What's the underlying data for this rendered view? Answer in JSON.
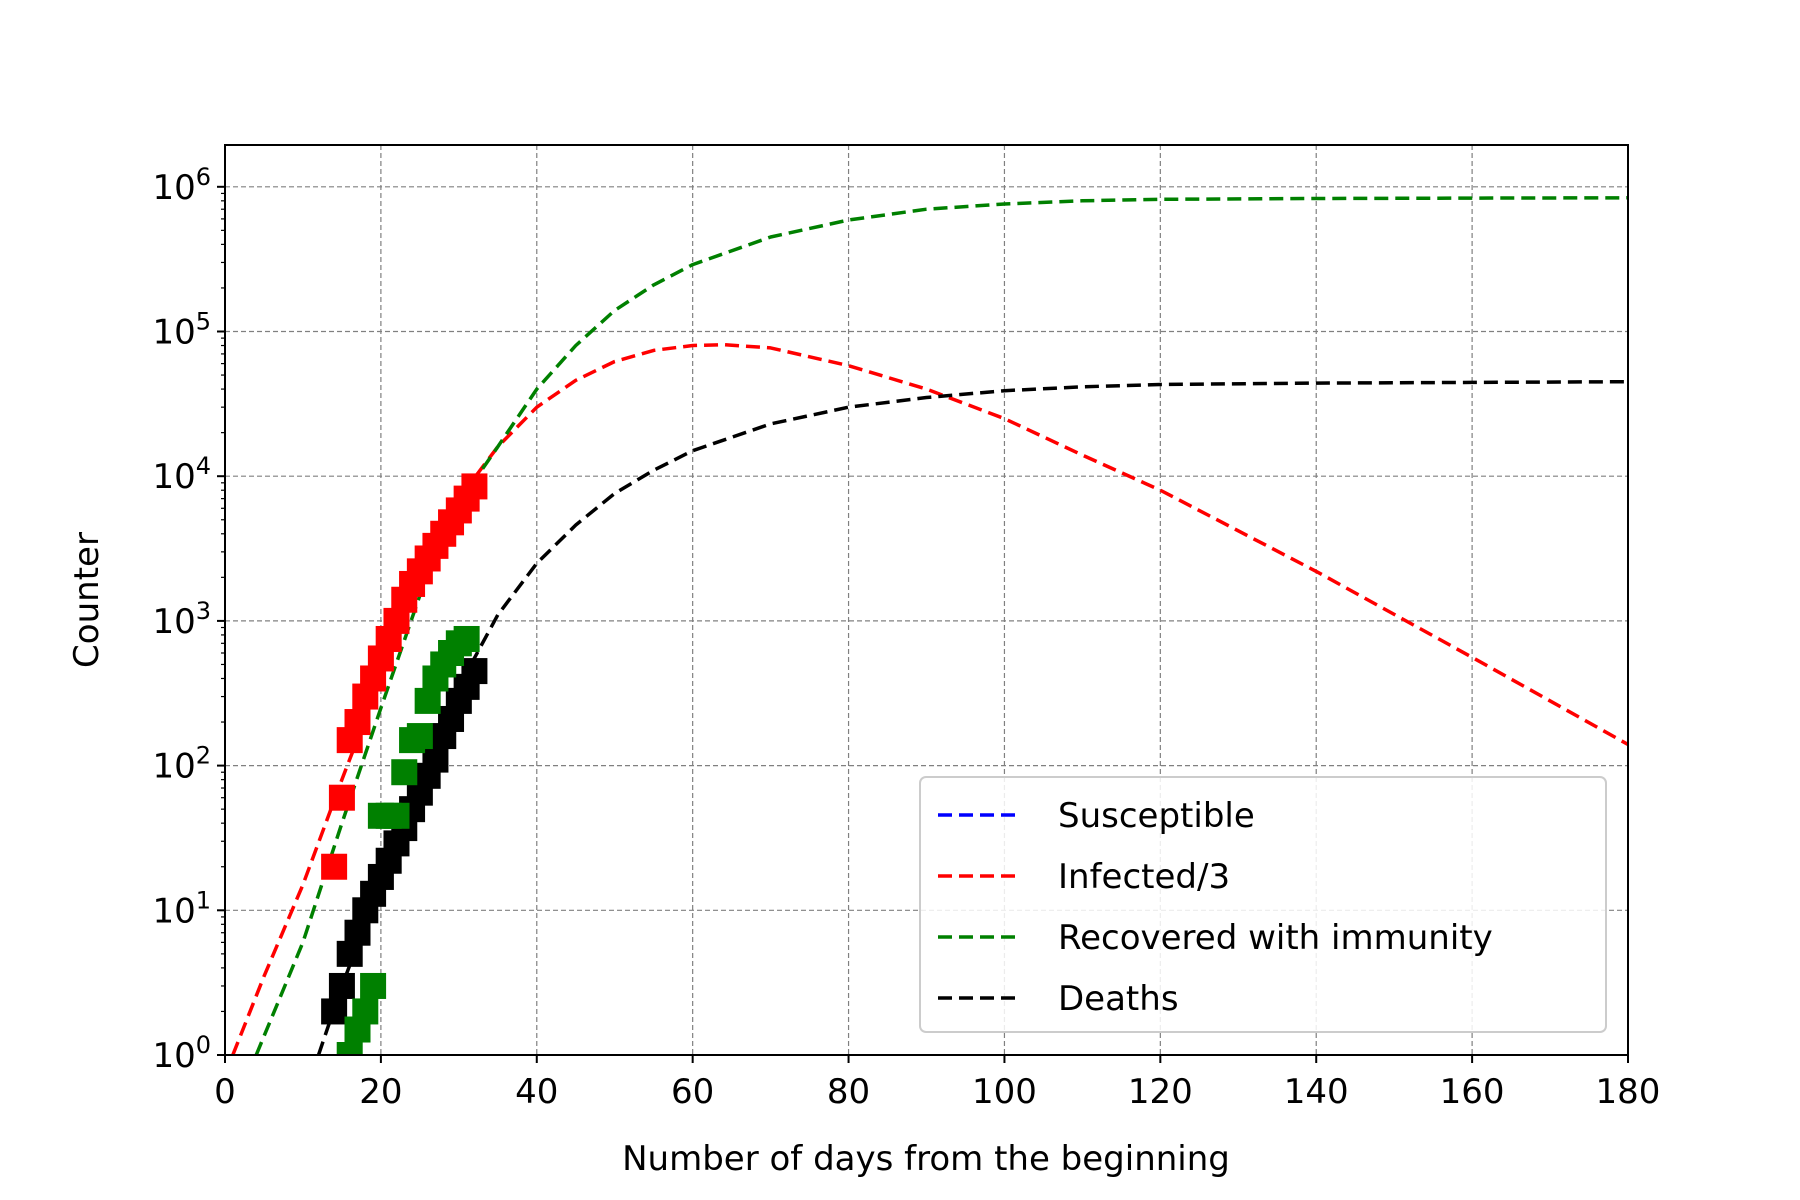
{
  "chart_data": {
    "type": "line",
    "title": "",
    "xlabel": "Number of days from the beginning",
    "ylabel": "Counter",
    "xlim": [
      0,
      180
    ],
    "ylim": [
      1,
      2000000
    ],
    "yscale": "log",
    "grid": true,
    "legend_position": "lower-right",
    "x_ticks": [
      0,
      20,
      40,
      60,
      80,
      100,
      120,
      140,
      160,
      180
    ],
    "x_tick_labels": [
      "0",
      "20",
      "40",
      "60",
      "80",
      "100",
      "120",
      "140",
      "160",
      "180"
    ],
    "y_ticks": [
      1,
      10,
      100,
      1000,
      10000,
      100000,
      1000000
    ],
    "y_tick_labels": [
      {
        "base": "10",
        "exp": "0"
      },
      {
        "base": "10",
        "exp": "1"
      },
      {
        "base": "10",
        "exp": "2"
      },
      {
        "base": "10",
        "exp": "3"
      },
      {
        "base": "10",
        "exp": "4"
      },
      {
        "base": "10",
        "exp": "5"
      },
      {
        "base": "10",
        "exp": "6"
      }
    ],
    "series": [
      {
        "name": "Susceptible",
        "color": "#0000ff",
        "style": "dashed",
        "x": [],
        "y": []
      },
      {
        "name": "Infected/3",
        "color": "#ff0000",
        "style": "dashed",
        "x": [
          1,
          5,
          10,
          15,
          20,
          25,
          30,
          35,
          40,
          45,
          50,
          55,
          60,
          64,
          70,
          80,
          90,
          100,
          110,
          120,
          140,
          160,
          180
        ],
        "y": [
          1,
          3.5,
          15,
          80,
          400,
          1900,
          7000,
          16000,
          30000,
          46000,
          62000,
          74000,
          80000,
          81000,
          77000,
          58000,
          40000,
          25000,
          14000,
          8000,
          2200,
          560,
          140
        ]
      },
      {
        "name": "Recovered with immunity",
        "color": "#008000",
        "style": "dashed",
        "x": [
          4,
          10,
          15,
          20,
          25,
          30,
          35,
          40,
          45,
          50,
          55,
          60,
          70,
          80,
          90,
          100,
          110,
          120,
          140,
          160,
          180
        ],
        "y": [
          1,
          6,
          40,
          250,
          1500,
          6500,
          16000,
          40000,
          80000,
          140000,
          210000,
          290000,
          450000,
          590000,
          700000,
          760000,
          800000,
          820000,
          830000,
          835000,
          840000
        ]
      },
      {
        "name": "Deaths",
        "color": "#000000",
        "style": "dashed",
        "x": [
          12,
          15,
          18,
          20,
          25,
          30,
          35,
          40,
          45,
          50,
          55,
          60,
          70,
          80,
          90,
          100,
          110,
          120,
          140,
          160,
          180
        ],
        "y": [
          1,
          3,
          8,
          18,
          80,
          350,
          1100,
          2500,
          4600,
          7600,
          11000,
          15000,
          23000,
          30000,
          35000,
          39000,
          41500,
          43000,
          44000,
          44500,
          45000
        ]
      }
    ],
    "markers": [
      {
        "series": "Infected/3",
        "color": "#ff0000",
        "x": [
          14,
          15,
          16,
          17,
          18,
          19,
          20,
          21,
          22,
          23,
          24,
          25,
          26,
          27,
          28,
          29,
          30,
          31,
          32
        ],
        "y": [
          20,
          60,
          150,
          200,
          300,
          400,
          550,
          750,
          1000,
          1400,
          1800,
          2200,
          2700,
          3300,
          4000,
          4800,
          5800,
          7000,
          8500
        ]
      },
      {
        "series": "Recovered with immunity",
        "color": "#008000",
        "x": [
          16,
          17,
          18,
          19,
          20,
          21,
          22,
          23,
          24,
          25,
          26,
          27,
          28,
          29,
          30,
          31
        ],
        "y": [
          1,
          1.5,
          2,
          3,
          45,
          45,
          45,
          90,
          150,
          160,
          280,
          400,
          500,
          600,
          700,
          750
        ]
      },
      {
        "series": "Deaths",
        "color": "#000000",
        "x": [
          14,
          15,
          16,
          17,
          18,
          19,
          20,
          21,
          22,
          23,
          24,
          25,
          26,
          27,
          28,
          29,
          30,
          31,
          32
        ],
        "y": [
          2,
          3,
          5,
          7,
          10,
          13,
          17,
          22,
          29,
          37,
          50,
          65,
          85,
          110,
          160,
          210,
          280,
          350,
          450
        ]
      }
    ]
  }
}
